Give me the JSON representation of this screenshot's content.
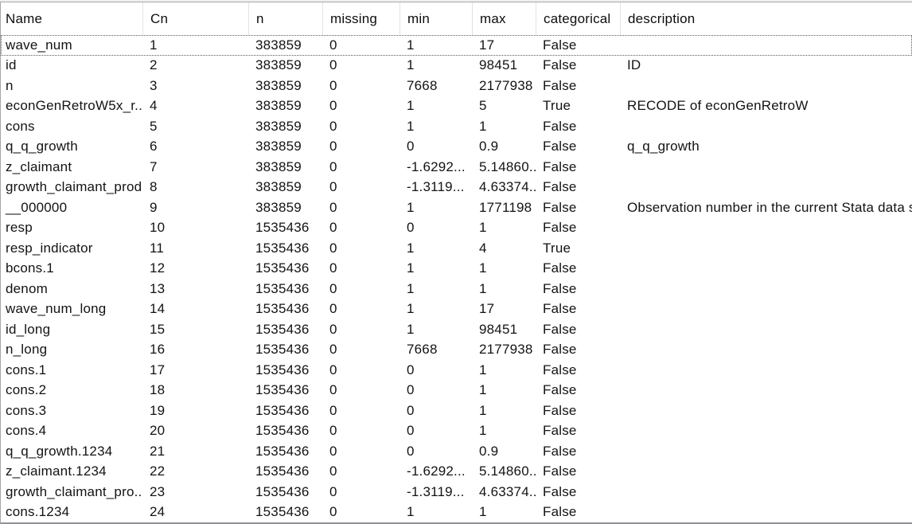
{
  "table": {
    "focused_row_index": 0,
    "columns": [
      {
        "key": "name",
        "label": "Name"
      },
      {
        "key": "cn",
        "label": "Cn"
      },
      {
        "key": "n",
        "label": "n"
      },
      {
        "key": "missing",
        "label": "missing"
      },
      {
        "key": "min",
        "label": "min"
      },
      {
        "key": "max",
        "label": "max"
      },
      {
        "key": "categorical",
        "label": "categorical"
      },
      {
        "key": "description",
        "label": "description"
      }
    ],
    "rows": [
      {
        "name": "wave_num",
        "cn": "1",
        "n": "383859",
        "missing": "0",
        "min": "1",
        "max": "17",
        "categorical": "False",
        "description": ""
      },
      {
        "name": "id",
        "cn": "2",
        "n": "383859",
        "missing": "0",
        "min": "1",
        "max": "98451",
        "categorical": "False",
        "description": "ID"
      },
      {
        "name": "n",
        "cn": "3",
        "n": "383859",
        "missing": "0",
        "min": "7668",
        "max": "2177938",
        "categorical": "False",
        "description": ""
      },
      {
        "name": "econGenRetroW5x_r...",
        "cn": "4",
        "n": "383859",
        "missing": "0",
        "min": "1",
        "max": "5",
        "categorical": "True",
        "description": "RECODE of econGenRetroW"
      },
      {
        "name": "cons",
        "cn": "5",
        "n": "383859",
        "missing": "0",
        "min": "1",
        "max": "1",
        "categorical": "False",
        "description": ""
      },
      {
        "name": "q_q_growth",
        "cn": "6",
        "n": "383859",
        "missing": "0",
        "min": "0",
        "max": "0.9",
        "categorical": "False",
        "description": "q_q_growth"
      },
      {
        "name": "z_claimant",
        "cn": "7",
        "n": "383859",
        "missing": "0",
        "min": "-1.6292...",
        "max": "5.14860...",
        "categorical": "False",
        "description": ""
      },
      {
        "name": "growth_claimant_prod",
        "cn": "8",
        "n": "383859",
        "missing": "0",
        "min": "-1.3119...",
        "max": "4.63374...",
        "categorical": "False",
        "description": ""
      },
      {
        "name": "__000000",
        "cn": "9",
        "n": "383859",
        "missing": "0",
        "min": "1",
        "max": "1771198",
        "categorical": "False",
        "description": "Observation number in the current Stata data set"
      },
      {
        "name": "resp",
        "cn": "10",
        "n": "1535436",
        "missing": "0",
        "min": "0",
        "max": "1",
        "categorical": "False",
        "description": ""
      },
      {
        "name": "resp_indicator",
        "cn": "11",
        "n": "1535436",
        "missing": "0",
        "min": "1",
        "max": "4",
        "categorical": "True",
        "description": ""
      },
      {
        "name": "bcons.1",
        "cn": "12",
        "n": "1535436",
        "missing": "0",
        "min": "1",
        "max": "1",
        "categorical": "False",
        "description": ""
      },
      {
        "name": "denom",
        "cn": "13",
        "n": "1535436",
        "missing": "0",
        "min": "1",
        "max": "1",
        "categorical": "False",
        "description": ""
      },
      {
        "name": "wave_num_long",
        "cn": "14",
        "n": "1535436",
        "missing": "0",
        "min": "1",
        "max": "17",
        "categorical": "False",
        "description": ""
      },
      {
        "name": "id_long",
        "cn": "15",
        "n": "1535436",
        "missing": "0",
        "min": "1",
        "max": "98451",
        "categorical": "False",
        "description": ""
      },
      {
        "name": "n_long",
        "cn": "16",
        "n": "1535436",
        "missing": "0",
        "min": "7668",
        "max": "2177938",
        "categorical": "False",
        "description": ""
      },
      {
        "name": "cons.1",
        "cn": "17",
        "n": "1535436",
        "missing": "0",
        "min": "0",
        "max": "1",
        "categorical": "False",
        "description": ""
      },
      {
        "name": "cons.2",
        "cn": "18",
        "n": "1535436",
        "missing": "0",
        "min": "0",
        "max": "1",
        "categorical": "False",
        "description": ""
      },
      {
        "name": "cons.3",
        "cn": "19",
        "n": "1535436",
        "missing": "0",
        "min": "0",
        "max": "1",
        "categorical": "False",
        "description": ""
      },
      {
        "name": "cons.4",
        "cn": "20",
        "n": "1535436",
        "missing": "0",
        "min": "0",
        "max": "1",
        "categorical": "False",
        "description": ""
      },
      {
        "name": "q_q_growth.1234",
        "cn": "21",
        "n": "1535436",
        "missing": "0",
        "min": "0",
        "max": "0.9",
        "categorical": "False",
        "description": ""
      },
      {
        "name": "z_claimant.1234",
        "cn": "22",
        "n": "1535436",
        "missing": "0",
        "min": "-1.6292...",
        "max": "5.14860...",
        "categorical": "False",
        "description": ""
      },
      {
        "name": "growth_claimant_pro...",
        "cn": "23",
        "n": "1535436",
        "missing": "0",
        "min": "-1.3119...",
        "max": "4.63374...",
        "categorical": "False",
        "description": ""
      },
      {
        "name": "cons.1234",
        "cn": "24",
        "n": "1535436",
        "missing": "0",
        "min": "1",
        "max": "1",
        "categorical": "False",
        "description": ""
      }
    ]
  }
}
